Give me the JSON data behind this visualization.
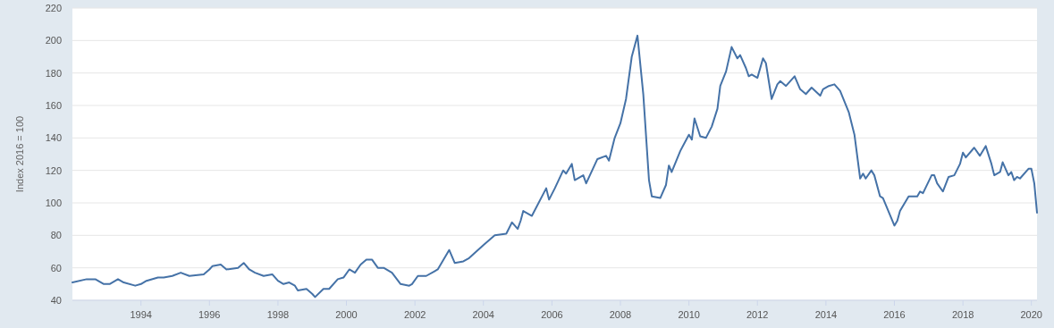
{
  "chart_data": {
    "type": "line",
    "ylabel": "Index 2016 = 100",
    "x": [
      "1992-01",
      "1992-06",
      "1992-09",
      "1992-12",
      "1993-02",
      "1993-05",
      "1993-07",
      "1993-11",
      "1994-01",
      "1994-03",
      "1994-07",
      "1994-09",
      "1994-12",
      "1995-03",
      "1995-06",
      "1995-11",
      "1996-01",
      "1996-02",
      "1996-05",
      "1996-07",
      "1996-11",
      "1997-01",
      "1997-03",
      "1997-05",
      "1997-08",
      "1997-11",
      "1998-01",
      "1998-03",
      "1998-05",
      "1998-07",
      "1998-08",
      "1998-11",
      "1999-01",
      "1999-02",
      "1999-05",
      "1999-07",
      "1999-10",
      "1999-12",
      "2000-02",
      "2000-04",
      "2000-06",
      "2000-08",
      "2000-10",
      "2000-12",
      "2001-02",
      "2001-05",
      "2001-08",
      "2001-11",
      "2001-12",
      "2002-02",
      "2002-05",
      "2002-08",
      "2002-09",
      "2003-01",
      "2003-03",
      "2003-06",
      "2003-08",
      "2004-01",
      "2004-05",
      "2004-09",
      "2004-11",
      "2005-01",
      "2005-02",
      "2005-03",
      "2005-06",
      "2005-11",
      "2005-12",
      "2006-02",
      "2006-05",
      "2006-06",
      "2006-08",
      "2006-09",
      "2006-12",
      "2007-01",
      "2007-05",
      "2007-08",
      "2007-09",
      "2007-11",
      "2008-01",
      "2008-03",
      "2008-05",
      "2008-07",
      "2008-09",
      "2008-11",
      "2008-12",
      "2009-03",
      "2009-05",
      "2009-06",
      "2009-07",
      "2009-10",
      "2010-01",
      "2010-02",
      "2010-03",
      "2010-05",
      "2010-07",
      "2010-09",
      "2010-11",
      "2010-12",
      "2011-02",
      "2011-04",
      "2011-06",
      "2011-07",
      "2011-09",
      "2011-10",
      "2011-11",
      "2012-01",
      "2012-03",
      "2012-04",
      "2012-06",
      "2012-08",
      "2012-09",
      "2012-11",
      "2013-02",
      "2013-04",
      "2013-06",
      "2013-08",
      "2013-11",
      "2013-12",
      "2014-02",
      "2014-04",
      "2014-06",
      "2014-09",
      "2014-11",
      "2015-01",
      "2015-02",
      "2015-03",
      "2015-05",
      "2015-06",
      "2015-08",
      "2015-09",
      "2016-01",
      "2016-02",
      "2016-03",
      "2016-06",
      "2016-09",
      "2016-10",
      "2016-11",
      "2017-02",
      "2017-03",
      "2017-04",
      "2017-06",
      "2017-08",
      "2017-10",
      "2017-12",
      "2018-01",
      "2018-02",
      "2018-05",
      "2018-07",
      "2018-09",
      "2018-11",
      "2018-12",
      "2019-02",
      "2019-03",
      "2019-05",
      "2019-06",
      "2019-07",
      "2019-08",
      "2019-09",
      "2019-12",
      "2020-01",
      "2020-02",
      "2020-03"
    ],
    "series": [
      {
        "color": "#4572a7",
        "values": [
          51,
          53,
          53,
          50,
          50,
          53,
          51,
          49,
          50,
          52,
          54,
          54,
          55,
          57,
          55,
          56,
          59,
          61,
          62,
          59,
          60,
          63,
          59,
          57,
          55,
          56,
          52,
          50,
          51,
          49,
          46,
          47,
          44,
          42,
          47,
          47,
          53,
          54,
          59,
          57,
          62,
          65,
          65,
          60,
          60,
          57,
          50,
          49,
          50,
          55,
          55,
          58,
          59,
          71,
          63,
          64,
          66,
          74,
          80,
          81,
          88,
          84,
          89,
          95,
          92,
          109,
          102,
          109,
          120,
          118,
          124,
          114,
          117,
          112,
          127,
          129,
          126,
          140,
          149,
          164,
          190,
          203,
          167,
          114,
          104,
          103,
          111,
          123,
          119,
          132,
          142,
          139,
          152,
          141,
          140,
          147,
          158,
          172,
          181,
          196,
          189,
          191,
          183,
          178,
          179,
          177,
          189,
          186,
          164,
          173,
          175,
          172,
          178,
          170,
          167,
          171,
          166,
          170,
          172,
          173,
          169,
          156,
          142,
          115,
          118,
          115,
          120,
          117,
          104,
          103,
          86,
          89,
          95,
          104,
          104,
          107,
          106,
          117,
          117,
          112,
          107,
          116,
          117,
          124,
          131,
          128,
          134,
          129,
          135,
          124,
          117,
          119,
          125,
          117,
          119,
          114,
          116,
          115,
          121,
          121,
          112,
          94
        ]
      }
    ],
    "xlim": [
      "1992-01",
      "2020-03"
    ],
    "xticks": [
      "1994",
      "1996",
      "1998",
      "2000",
      "2002",
      "2004",
      "2006",
      "2008",
      "2010",
      "2012",
      "2014",
      "2016",
      "2018",
      "2020"
    ],
    "ylim": [
      40,
      220
    ],
    "yticks": [
      40,
      60,
      80,
      100,
      120,
      140,
      160,
      180,
      200,
      220
    ],
    "grid": "y",
    "marker": "none",
    "line_style": "solid"
  }
}
